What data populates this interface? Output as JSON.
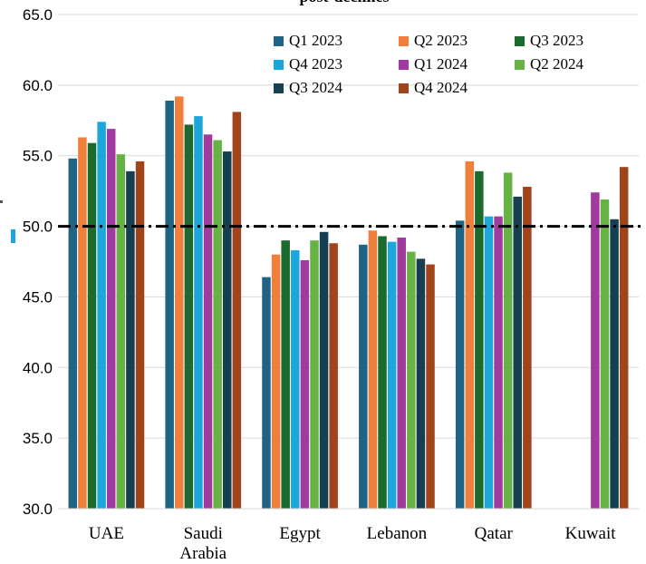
{
  "chart_data": {
    "type": "bar",
    "title_fragment": "post-declines",
    "categories": [
      "UAE",
      "Saudi\nArabia",
      "Egypt",
      "Lebanon",
      "Qatar",
      "Kuwait"
    ],
    "ylim": [
      30.0,
      65.0
    ],
    "yticks": [
      "30.0",
      "35.0",
      "40.0",
      "45.0",
      "50.0",
      "55.0",
      "60.0",
      "65.0"
    ],
    "grid": true,
    "legend_position": "top-right",
    "reference_line": {
      "value": 50.0,
      "style": "dash-dot"
    },
    "series": [
      {
        "name": "Q1 2023",
        "color": "#1f6485",
        "values": [
          54.8,
          58.9,
          46.4,
          48.7,
          50.4,
          null
        ]
      },
      {
        "name": "Q2 2023",
        "color": "#f07f3c",
        "values": [
          56.3,
          59.2,
          48.0,
          49.7,
          54.6,
          null
        ]
      },
      {
        "name": "Q3 2023",
        "color": "#1b6b2f",
        "values": [
          55.9,
          57.2,
          49.0,
          49.3,
          53.9,
          null
        ]
      },
      {
        "name": "Q4 2023",
        "color": "#1ba7db",
        "values": [
          57.4,
          57.8,
          48.3,
          48.9,
          50.7,
          null
        ]
      },
      {
        "name": "Q1 2024",
        "color": "#a03a9e",
        "values": [
          56.9,
          56.5,
          47.6,
          49.2,
          50.7,
          52.4
        ]
      },
      {
        "name": "Q2 2024",
        "color": "#66b245",
        "values": [
          55.1,
          56.1,
          49.0,
          48.2,
          53.8,
          51.9
        ]
      },
      {
        "name": "Q3 2024",
        "color": "#163f52",
        "values": [
          53.9,
          55.3,
          49.6,
          47.7,
          52.1,
          50.5
        ]
      },
      {
        "name": "Q4 2024",
        "color": "#a0441c",
        "values": [
          54.6,
          58.1,
          48.8,
          47.3,
          52.8,
          54.2
        ]
      }
    ]
  }
}
